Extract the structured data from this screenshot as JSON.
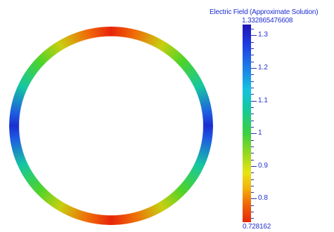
{
  "legend": {
    "title": "Electric Field (Approximate Solution)",
    "max_label": "1.332865476608",
    "min_label": "0.728162",
    "range": [
      0.728162,
      1.332865476608
    ],
    "ticks": [
      {
        "label": "1.3",
        "value": 1.3
      },
      {
        "label": "1.2",
        "value": 1.2
      },
      {
        "label": "1.1",
        "value": 1.1
      },
      {
        "label": "1",
        "value": 1.0
      },
      {
        "label": "0.9",
        "value": 0.9
      },
      {
        "label": "0.8",
        "value": 0.8
      }
    ],
    "colors": {
      "high": "#2014b4",
      "mid": "#3bd040",
      "low": "#e62808",
      "text": "#1f2fd0"
    }
  }
}
